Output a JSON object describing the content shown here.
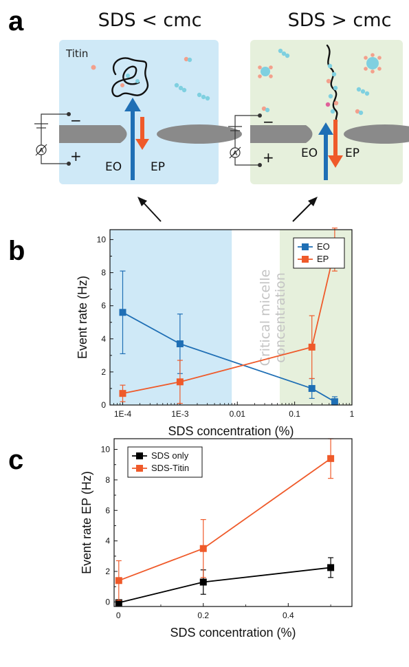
{
  "figure": {
    "panel_a": {
      "label": "a",
      "left_title": "SDS < cmc",
      "right_title": "SDS > cmc",
      "titin_label": "Titin",
      "eo_label": "EO",
      "ep_label": "EP",
      "minus": "−",
      "plus": "+",
      "ammeter": "A",
      "colors": {
        "left_bg": "#cfe9f7",
        "right_bg": "#e6f0dc",
        "eo": "#1f6fb5",
        "ep": "#ef5a2a",
        "membrane": "#8a8a8a"
      }
    },
    "panel_b": {
      "label": "b",
      "cmc_text": [
        "Critical micelle",
        "concentration"
      ]
    },
    "panel_c": {
      "label": "c"
    }
  },
  "chart_data": [
    {
      "id": "b",
      "type": "line",
      "xscale": "log",
      "xlim": [
        6e-05,
        1
      ],
      "ylim": [
        0,
        10.6
      ],
      "xticks": [
        0.0001,
        0.001,
        0.01,
        0.1,
        1
      ],
      "xtick_labels": [
        "1E-4",
        "1E-3",
        "0.01",
        "0.1",
        "1"
      ],
      "yticks": [
        0,
        2,
        4,
        6,
        8,
        10
      ],
      "ytick_labels": [
        "0",
        "2",
        "4",
        "6",
        "8",
        "10"
      ],
      "xlabel": "SDS concentration (%)",
      "ylabel": "Event rate (Hz)",
      "legend_position": "top-right",
      "shaded_regions": [
        {
          "from": 6e-05,
          "to": 0.008,
          "color": "#cfe9f7"
        },
        {
          "from": 0.055,
          "to": 1,
          "color": "#e6f0dc"
        }
      ],
      "series": [
        {
          "name": "EO",
          "color": "#1f6fb5",
          "x": [
            0.0001,
            0.001,
            0.2,
            0.5
          ],
          "y": [
            5.6,
            3.7,
            1.0,
            0.2
          ],
          "err": [
            2.5,
            1.8,
            0.6,
            0.3
          ]
        },
        {
          "name": "EP",
          "color": "#ef5a2a",
          "x": [
            0.0001,
            0.001,
            0.2,
            0.5
          ],
          "y": [
            0.7,
            1.4,
            3.5,
            9.4
          ],
          "err": [
            0.5,
            1.3,
            1.9,
            1.3
          ]
        }
      ]
    },
    {
      "id": "c",
      "type": "line",
      "xscale": "linear",
      "xlim": [
        -0.01,
        0.55
      ],
      "ylim": [
        -0.3,
        10.7
      ],
      "xticks": [
        0,
        0.2,
        0.4
      ],
      "xtick_labels": [
        "0",
        "0.2",
        "0.4"
      ],
      "yticks": [
        0,
        2,
        4,
        6,
        8,
        10
      ],
      "ytick_labels": [
        "0",
        "2",
        "4",
        "6",
        "8",
        "10"
      ],
      "xlabel": "SDS concentration (%)",
      "ylabel": "Event rate EP (Hz)",
      "legend_position": "top-left",
      "series": [
        {
          "name": "SDS only",
          "color": "#000000",
          "x": [
            0.001,
            0.2,
            0.5
          ],
          "y": [
            -0.05,
            1.3,
            2.25
          ],
          "err": [
            0.1,
            0.8,
            0.65
          ]
        },
        {
          "name": "SDS-Titin",
          "color": "#ef5a2a",
          "x": [
            0.001,
            0.2,
            0.5
          ],
          "y": [
            1.4,
            3.5,
            9.4
          ],
          "err": [
            1.3,
            1.9,
            1.3
          ]
        }
      ]
    }
  ]
}
